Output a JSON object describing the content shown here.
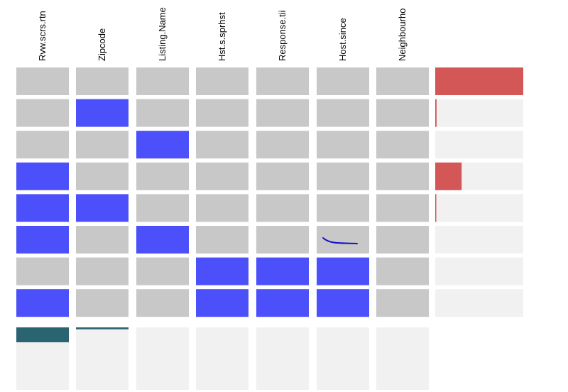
{
  "colors": {
    "missing": "#4b50fa",
    "present": "#c8c8c8",
    "bar": "#d45757",
    "summary": "#2a6470",
    "panel": "#f1f1f1",
    "annotation": "#1010c8"
  },
  "chart_data": {
    "type": "heatmap",
    "title": "",
    "columns": [
      "Rvw.scrs.rtn",
      "Zipcode",
      "Listing.Name",
      "Hst.s.sprhst",
      "Response.tii",
      "Host.since",
      "Neighbourho"
    ],
    "patterns": [
      [
        0,
        0,
        0,
        0,
        0,
        0,
        0
      ],
      [
        0,
        1,
        0,
        0,
        0,
        0,
        0
      ],
      [
        0,
        0,
        1,
        0,
        0,
        0,
        0
      ],
      [
        1,
        0,
        0,
        0,
        0,
        0,
        0
      ],
      [
        1,
        1,
        0,
        0,
        0,
        0,
        0
      ],
      [
        1,
        0,
        1,
        0,
        0,
        0,
        0
      ],
      [
        0,
        0,
        0,
        1,
        1,
        1,
        0
      ],
      [
        1,
        0,
        0,
        1,
        1,
        1,
        0
      ]
    ],
    "pattern_frequency": [
      1.0,
      0.015,
      0.0,
      0.3,
      0.01,
      0.0,
      0.0,
      0.0
    ],
    "column_missing_fraction": [
      0.155,
      0.02,
      0.0,
      0.0,
      0.0,
      0.0,
      0.0
    ],
    "legend": "none"
  }
}
